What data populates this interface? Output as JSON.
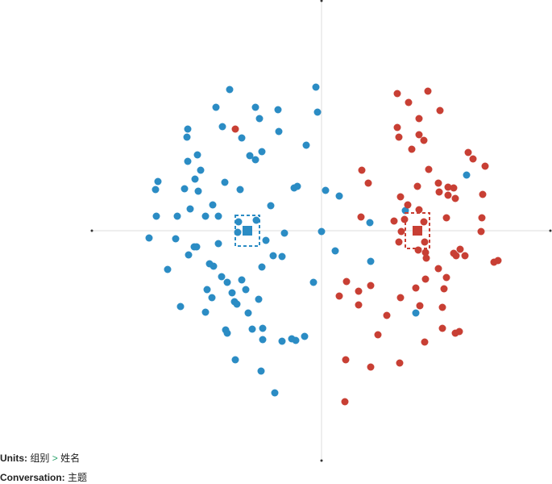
{
  "chart_data": {
    "type": "scatter",
    "xlim": [
      -286,
      286
    ],
    "ylim": [
      -286,
      286
    ],
    "series": [
      {
        "color": "#2b8cc4",
        "x": [
          -114,
          -7,
          -131,
          -82,
          -54,
          -5,
          -77,
          -166,
          -123,
          -53,
          -167,
          -99,
          -19,
          -74,
          -89,
          -82,
          -154,
          -166,
          -150,
          -203,
          -157,
          -120,
          -206,
          -170,
          -153,
          -101,
          -30,
          -34,
          5,
          22,
          -63,
          -135,
          -163,
          -205,
          -179,
          -144,
          -128,
          -81,
          -103,
          -104,
          -214,
          -181,
          -128,
          -69,
          -46,
          0,
          60,
          -165,
          -155,
          -158,
          -139,
          -134,
          -74,
          -60,
          -49,
          17,
          -191,
          -124,
          -99,
          -117,
          -10,
          61,
          -142,
          -94,
          -136,
          -111,
          -78,
          -108,
          -105,
          -175,
          -144,
          -91,
          -119,
          -117,
          -86,
          -73,
          -73,
          -49,
          -37,
          -32,
          -21,
          -107,
          -75,
          -58,
          117,
          180,
          104
        ],
        "values": [
          175,
          178,
          153,
          153,
          150,
          147,
          139,
          126,
          129,
          123,
          116,
          115,
          106,
          98,
          93,
          88,
          94,
          86,
          75,
          61,
          64,
          60,
          51,
          52,
          49,
          51,
          55,
          53,
          50,
          43,
          31,
          32,
          27,
          18,
          18,
          18,
          18,
          13,
          11,
          -2,
          -9,
          -10,
          -16,
          -12,
          -3,
          -1,
          10,
          -30,
          -20,
          -20,
          -41,
          -44,
          -45,
          -31,
          -32,
          -25,
          -48,
          -57,
          -61,
          -64,
          -64,
          -38,
          -73,
          -73,
          -83,
          -77,
          -85,
          -88,
          -91,
          -94,
          -101,
          -102,
          -123,
          -127,
          -122,
          -121,
          -135,
          -137,
          -134,
          -136,
          -131,
          -160,
          -174,
          -201,
          -102,
          69,
          25
        ]
      },
      {
        "color": "#c83f34",
        "x": [
          94,
          132,
          108,
          147,
          121,
          94,
          121,
          96,
          127,
          112,
          182,
          188,
          203,
          50,
          133,
          145,
          157,
          164,
          58,
          119,
          157,
          146,
          200,
          166,
          98,
          107,
          121,
          155,
          199,
          49,
          90,
          103,
          99,
          127,
          198,
          128,
          172,
          96,
          120,
          130,
          178,
          167,
          164,
          129,
          219,
          214,
          145,
          155,
          129,
          31,
          61,
          46,
          22,
          152,
          117,
          46,
          98,
          81,
          150,
          122,
          150,
          171,
          166,
          70,
          128,
          30,
          97,
          61,
          29,
          -107
        ],
        "values": [
          170,
          173,
          159,
          149,
          139,
          128,
          119,
          116,
          112,
          101,
          97,
          89,
          80,
          75,
          76,
          59,
          54,
          53,
          59,
          55,
          44,
          48,
          45,
          40,
          42,
          32,
          26,
          16,
          16,
          17,
          12,
          14,
          -1,
          11,
          -1,
          -14,
          -23,
          -14,
          -24,
          -34,
          -31,
          -31,
          -28,
          -27,
          -37,
          -39,
          -47,
          -58,
          -60,
          -63,
          -68,
          -75,
          -81,
          -72,
          -71,
          -92,
          -83,
          -105,
          -95,
          -93,
          -121,
          -125,
          -127,
          -129,
          -138,
          -160,
          -164,
          -169,
          -212,
          126
        ]
      }
    ],
    "centroids": [
      {
        "color": "#2b8cc4",
        "x": -92,
        "y": 0,
        "x_err": 15,
        "y_err": 19
      },
      {
        "color": "#c83f34",
        "x": 119,
        "y": 0,
        "x_err": 15,
        "y_err": 22
      }
    ]
  },
  "footer": {
    "units_label": "Units:",
    "units_from": "组别",
    "separator": ">",
    "units_to": "姓名",
    "conversation_label": "Conversation:",
    "conversation_value": "主题"
  }
}
